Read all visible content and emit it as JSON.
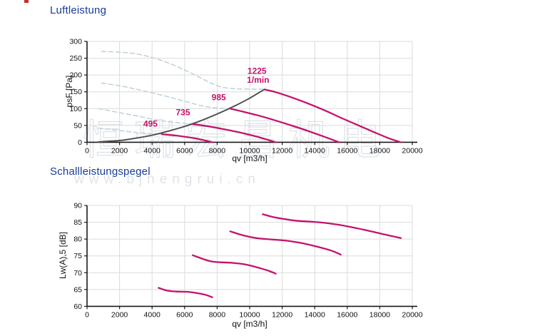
{
  "page": {
    "watermark_cjk": "恒瑞宏昌机电",
    "watermark_url": "www.bjhengrui.cn"
  },
  "colors": {
    "title_blue": "#1b3c97",
    "curve_magenta": "#c4126b",
    "curve_dashed_blue": "#c2d3dd",
    "system_line": "#4d4d4d",
    "grid": "#dbdbdb",
    "axis": "#1a1a1a",
    "tick_text": "#111111"
  },
  "chart_data": [
    {
      "type": "line",
      "title": "Luftleistung",
      "xlabel": "qv [m3/h]",
      "ylabel": "psF [Pa]",
      "x_range": [
        0,
        20000
      ],
      "y_range": [
        0,
        300
      ],
      "x_ticks": [
        0,
        2000,
        4000,
        6000,
        8000,
        10000,
        12000,
        14000,
        16000,
        18000,
        20000
      ],
      "y_ticks": [
        0,
        50,
        100,
        150,
        200,
        250,
        300
      ],
      "grid": true,
      "series": [
        {
          "name": "1225-unstable-region",
          "style": "dashed",
          "points": [
            [
              900,
              270
            ],
            [
              2000,
              268
            ],
            [
              3000,
              263
            ],
            [
              4000,
              252
            ],
            [
              5000,
              236
            ],
            [
              6000,
              215
            ],
            [
              7000,
              191
            ],
            [
              7800,
              172
            ],
            [
              8400,
              163
            ],
            [
              9200,
              159
            ],
            [
              10100,
              158
            ],
            [
              10800,
              158
            ]
          ]
        },
        {
          "name": "985-unstable-region",
          "style": "dashed",
          "points": [
            [
              900,
              176
            ],
            [
              2000,
              168
            ],
            [
              3000,
              158
            ],
            [
              4000,
              147
            ],
            [
              5000,
              135
            ],
            [
              6000,
              122
            ],
            [
              7000,
              109
            ],
            [
              7800,
              103
            ],
            [
              8800,
              100
            ]
          ]
        },
        {
          "name": "735-unstable-region",
          "style": "dashed",
          "points": [
            [
              700,
              100
            ],
            [
              2000,
              88
            ],
            [
              3000,
              79
            ],
            [
              4000,
              69
            ],
            [
              5000,
              61
            ],
            [
              6000,
              56
            ],
            [
              6500,
              54
            ]
          ]
        },
        {
          "name": "495-unstable-region",
          "style": "dashed",
          "points": [
            [
              700,
              42
            ],
            [
              2000,
              35
            ],
            [
              3000,
              29
            ],
            [
              4000,
              26
            ],
            [
              4600,
              24
            ]
          ]
        },
        {
          "name": "system-boundary",
          "style": "system",
          "points": [
            [
              700,
              1
            ],
            [
              2000,
              5
            ],
            [
              3000,
              12
            ],
            [
              4000,
              21
            ],
            [
              5000,
              33
            ],
            [
              6000,
              47
            ],
            [
              7000,
              64
            ],
            [
              8000,
              84
            ],
            [
              9000,
              106
            ],
            [
              10000,
              131
            ],
            [
              10900,
              157
            ]
          ]
        },
        {
          "name": "495-rpm",
          "style": "solid",
          "points": [
            [
              4600,
              24
            ],
            [
              5600,
              19
            ],
            [
              6600,
              12
            ],
            [
              7200,
              6
            ],
            [
              7700,
              0
            ]
          ]
        },
        {
          "name": "735-rpm",
          "style": "solid",
          "points": [
            [
              6500,
              54
            ],
            [
              7500,
              47
            ],
            [
              8500,
              38
            ],
            [
              9500,
              28
            ],
            [
              10500,
              16
            ],
            [
              11600,
              0
            ]
          ]
        },
        {
          "name": "985-rpm",
          "style": "solid",
          "points": [
            [
              8800,
              100
            ],
            [
              9500,
              92
            ],
            [
              10500,
              80
            ],
            [
              11500,
              66
            ],
            [
              12500,
              51
            ],
            [
              13500,
              35
            ],
            [
              14500,
              18
            ],
            [
              15500,
              0
            ]
          ]
        },
        {
          "name": "1225-rpm",
          "style": "solid",
          "points": [
            [
              10900,
              157
            ],
            [
              11600,
              149
            ],
            [
              12600,
              133
            ],
            [
              13600,
              115
            ],
            [
              14600,
              95
            ],
            [
              15600,
              73
            ],
            [
              16600,
              52
            ],
            [
              17600,
              31
            ],
            [
              18600,
              11
            ],
            [
              19300,
              0
            ]
          ]
        }
      ],
      "labels": [
        {
          "text": "495",
          "x": 3900,
          "y": 46
        },
        {
          "text": "735",
          "x": 5900,
          "y": 80
        },
        {
          "text": "985",
          "x": 8100,
          "y": 125
        },
        {
          "text": "1225",
          "x": 10450,
          "y": 203
        },
        {
          "text": "1/min",
          "x": 10520,
          "y": 177
        }
      ]
    },
    {
      "type": "line",
      "title": "Schallleistungspegel",
      "xlabel": "qv [m3/h]",
      "ylabel": "Lw(A),5 [dB]",
      "x_range": [
        0,
        20000
      ],
      "y_range": [
        60,
        90
      ],
      "x_ticks": [
        0,
        2000,
        4000,
        6000,
        8000,
        10000,
        12000,
        14000,
        16000,
        18000,
        20000
      ],
      "y_ticks": [
        60,
        65,
        70,
        75,
        80,
        85,
        90
      ],
      "grid": true,
      "series": [
        {
          "name": "495-rpm-noise",
          "style": "solid",
          "points": [
            [
              4400,
              65.5
            ],
            [
              4900,
              64.7
            ],
            [
              5500,
              64.4
            ],
            [
              6200,
              64.3
            ],
            [
              6800,
              63.9
            ],
            [
              7300,
              63.4
            ],
            [
              7700,
              62.7
            ]
          ]
        },
        {
          "name": "735-rpm-noise",
          "style": "solid",
          "points": [
            [
              6500,
              75.2
            ],
            [
              7000,
              74.3
            ],
            [
              7600,
              73.4
            ],
            [
              8200,
              73.1
            ],
            [
              9000,
              72.9
            ],
            [
              9800,
              72.4
            ],
            [
              10600,
              71.4
            ],
            [
              11200,
              70.5
            ],
            [
              11600,
              69.7
            ]
          ]
        },
        {
          "name": "985-rpm-noise",
          "style": "solid",
          "points": [
            [
              8800,
              82.3
            ],
            [
              9600,
              81.1
            ],
            [
              10400,
              80.3
            ],
            [
              11300,
              79.9
            ],
            [
              12300,
              79.5
            ],
            [
              13200,
              78.8
            ],
            [
              14100,
              77.8
            ],
            [
              15000,
              76.6
            ],
            [
              15600,
              75.4
            ]
          ]
        },
        {
          "name": "1225-rpm-noise",
          "style": "solid",
          "points": [
            [
              10800,
              87.4
            ],
            [
              11400,
              86.6
            ],
            [
              12200,
              85.9
            ],
            [
              13000,
              85.4
            ],
            [
              14000,
              85.1
            ],
            [
              15000,
              84.6
            ],
            [
              16000,
              83.8
            ],
            [
              17000,
              82.8
            ],
            [
              18000,
              81.7
            ],
            [
              19300,
              80.3
            ]
          ]
        }
      ],
      "labels": []
    }
  ]
}
